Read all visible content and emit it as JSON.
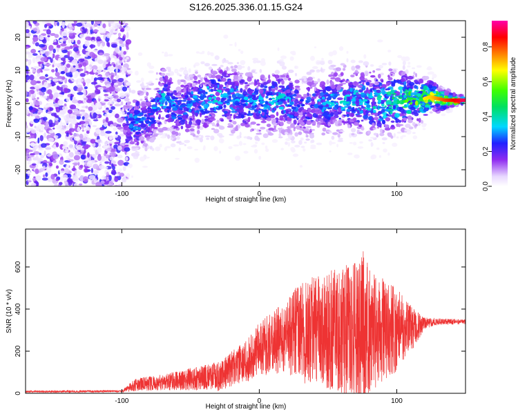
{
  "title": "S126.2025.336.01.15.G24",
  "chart_data": [
    {
      "type": "heatmap",
      "name": "spectrogram",
      "xlabel": "Height of straight line (km)",
      "ylabel": "Frequency (Hz)",
      "xlim": [
        -170,
        150
      ],
      "ylim": [
        -25,
        25
      ],
      "xticks": [
        -100,
        0,
        100
      ],
      "xtick_labels": [
        "-100",
        "0",
        "100"
      ],
      "yticks": [
        20,
        10,
        0,
        -10,
        -20
      ],
      "ytick_labels": [
        "20",
        "10",
        "0",
        "-10",
        "-20"
      ],
      "colorbar": {
        "label": "Normalized spectral amplitude",
        "range": [
          0,
          0.95
        ],
        "ticks": [
          0.0,
          0.2,
          0.4,
          0.6,
          0.8
        ],
        "tick_labels": [
          "0.0",
          "0.2",
          "0.4",
          "0.6",
          "0.8"
        ]
      },
      "ridge": {
        "x": [
          -95,
          -80,
          -70,
          -60,
          -45,
          -30,
          -15,
          0,
          15,
          30,
          45,
          60,
          75,
          90,
          105,
          115,
          125,
          135,
          148
        ],
        "freq": [
          -6,
          -4,
          2,
          -2,
          0,
          2,
          1,
          0,
          1,
          -1,
          0,
          1,
          1,
          0,
          1,
          1,
          2,
          1,
          1
        ],
        "peak_amplitude": [
          0.35,
          0.3,
          0.4,
          0.3,
          0.35,
          0.4,
          0.35,
          0.35,
          0.4,
          0.3,
          0.35,
          0.4,
          0.4,
          0.45,
          0.55,
          0.65,
          0.7,
          0.8,
          0.9
        ]
      }
    },
    {
      "type": "line",
      "name": "snr",
      "xlabel": "Height of straight line (km)",
      "ylabel": "SNR (10 * v/v)",
      "xlim": [
        -170,
        150
      ],
      "ylim": [
        0,
        780
      ],
      "xticks": [
        -100,
        0,
        100
      ],
      "xtick_labels": [
        "-100",
        "0",
        "100"
      ],
      "yticks": [
        0,
        200,
        400,
        600
      ],
      "ytick_labels": [
        "0",
        "200",
        "400",
        "600"
      ],
      "series": [
        {
          "name": "SNR",
          "color": "#ee3333",
          "envelope": {
            "x": [
              -170,
              -100,
              -90,
              -60,
              -30,
              -10,
              0,
              10,
              20,
              30,
              40,
              50,
              60,
              70,
              75,
              80,
              90,
              100,
              110,
              120,
              130,
              150
            ],
            "mean": [
              8,
              10,
              40,
              60,
              80,
              150,
              210,
              240,
              270,
              290,
              300,
              300,
              300,
              300,
              300,
              300,
              300,
              300,
              310,
              330,
              340,
              340
            ],
            "amp": [
              5,
              5,
              30,
              45,
              70,
              100,
              130,
              150,
              180,
              240,
              260,
              280,
              300,
              330,
              390,
              300,
              250,
              200,
              120,
              30,
              15,
              12
            ]
          }
        }
      ]
    }
  ],
  "colors": {
    "line": "#ee3333",
    "axis": "#000000",
    "background": "#ffffff"
  }
}
